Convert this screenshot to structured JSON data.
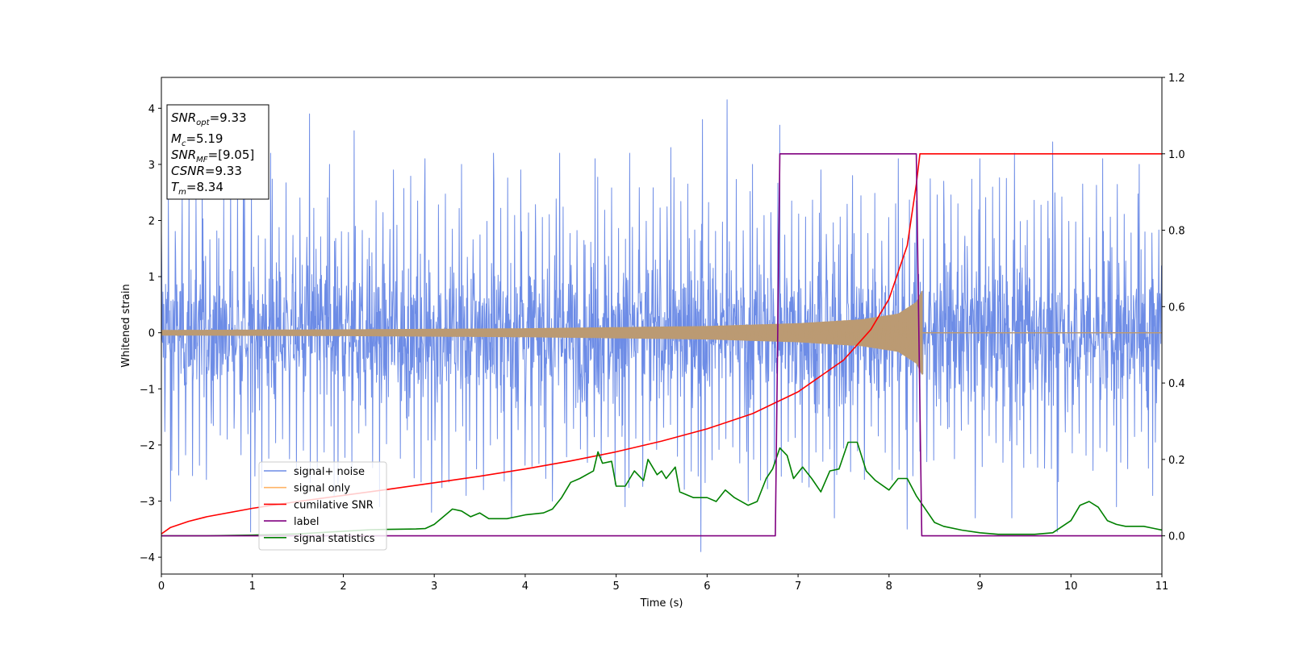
{
  "chart_data": {
    "type": "line",
    "xlabel": "Time (s)",
    "ylabel": "Whitened strain",
    "xlim": [
      0,
      11
    ],
    "ylim": [
      -4.3,
      4.55
    ],
    "y2lim": [
      -0.1,
      1.2
    ],
    "xticks": [
      "0",
      "1",
      "2",
      "3",
      "4",
      "5",
      "6",
      "7",
      "8",
      "9",
      "10",
      "11"
    ],
    "yticks": [
      "−4",
      "−3",
      "−2",
      "−1",
      "0",
      "1",
      "2",
      "3",
      "4"
    ],
    "y2ticks": [
      "0.0",
      "0.2",
      "0.4",
      "0.6",
      "0.8",
      "1.0",
      "1.2"
    ],
    "legend_position": "lower-left",
    "colors": {
      "signal_noise": "#6d8ce6",
      "signal_only": "#ffb366",
      "signal_only_overlap": "#bb9a73",
      "cumulative_snr": "#ff0000",
      "label": "#800080",
      "signal_statistics": "#008000"
    },
    "info_box": {
      "snr_opt": "9.33",
      "mc": "5.19",
      "snr_mf": "[9.05]",
      "csnr": "9.33",
      "tm": "8.34"
    },
    "series": [
      {
        "name": "signal+ noise",
        "axis": "left",
        "kind": "noise",
        "x_range": [
          0,
          11
        ],
        "typical_amplitude": [
          -1.6,
          1.6
        ],
        "peaks": [
          {
            "x": 0.1,
            "y": 2.9
          },
          {
            "x": 0.45,
            "y": 2.8
          },
          {
            "x": 0.9,
            "y": 2.7
          },
          {
            "x": 1.2,
            "y": 3.2
          },
          {
            "x": 1.63,
            "y": 3.9
          },
          {
            "x": 1.85,
            "y": 3.0
          },
          {
            "x": 2.12,
            "y": 3.6
          },
          {
            "x": 2.55,
            "y": 2.9
          },
          {
            "x": 2.9,
            "y": 3.1
          },
          {
            "x": 3.3,
            "y": 3.0
          },
          {
            "x": 3.65,
            "y": 3.2
          },
          {
            "x": 3.95,
            "y": 2.9
          },
          {
            "x": 4.38,
            "y": 3.2
          },
          {
            "x": 4.77,
            "y": 3.1
          },
          {
            "x": 5.15,
            "y": 3.2
          },
          {
            "x": 5.6,
            "y": 3.3
          },
          {
            "x": 5.95,
            "y": 3.8
          },
          {
            "x": 6.22,
            "y": 4.15
          },
          {
            "x": 6.5,
            "y": 3.0
          },
          {
            "x": 6.8,
            "y": 3.7
          },
          {
            "x": 7.25,
            "y": 2.9
          },
          {
            "x": 7.6,
            "y": 2.8
          },
          {
            "x": 8.1,
            "y": 3.1
          },
          {
            "x": 8.6,
            "y": 2.7
          },
          {
            "x": 9.0,
            "y": 3.1
          },
          {
            "x": 9.38,
            "y": 3.2
          },
          {
            "x": 9.8,
            "y": 3.4
          },
          {
            "x": 10.35,
            "y": 3.1
          },
          {
            "x": 10.75,
            "y": 3.0
          }
        ],
        "troughs": [
          {
            "x": 0.1,
            "y": -3.0
          },
          {
            "x": 0.98,
            "y": -3.55
          },
          {
            "x": 1.9,
            "y": -2.9
          },
          {
            "x": 2.4,
            "y": -3.1
          },
          {
            "x": 2.97,
            "y": -3.2
          },
          {
            "x": 3.35,
            "y": -2.9
          },
          {
            "x": 3.85,
            "y": -3.3
          },
          {
            "x": 4.3,
            "y": -3.0
          },
          {
            "x": 5.1,
            "y": -3.1
          },
          {
            "x": 5.93,
            "y": -3.9
          },
          {
            "x": 6.45,
            "y": -3.0
          },
          {
            "x": 7.4,
            "y": -3.3
          },
          {
            "x": 8.2,
            "y": -3.5
          },
          {
            "x": 8.95,
            "y": -3.3
          },
          {
            "x": 9.35,
            "y": -3.3
          },
          {
            "x": 9.85,
            "y": -3.55
          },
          {
            "x": 10.5,
            "y": -3.1
          },
          {
            "x": 10.9,
            "y": -2.9
          }
        ]
      },
      {
        "name": "signal only",
        "axis": "left",
        "kind": "chirp",
        "x_range": [
          0,
          8.37
        ],
        "envelope": [
          {
            "x": 0,
            "y": 0.05
          },
          {
            "x": 2,
            "y": 0.06
          },
          {
            "x": 4,
            "y": 0.08
          },
          {
            "x": 6,
            "y": 0.12
          },
          {
            "x": 7,
            "y": 0.17
          },
          {
            "x": 7.7,
            "y": 0.24
          },
          {
            "x": 8.1,
            "y": 0.34
          },
          {
            "x": 8.3,
            "y": 0.55
          },
          {
            "x": 8.36,
            "y": 0.75
          }
        ]
      },
      {
        "name": "cumilative SNR",
        "axis": "right",
        "kind": "line",
        "points": [
          {
            "x": 0,
            "y": 0.005
          },
          {
            "x": 0.1,
            "y": 0.022
          },
          {
            "x": 0.3,
            "y": 0.038
          },
          {
            "x": 0.5,
            "y": 0.05
          },
          {
            "x": 1,
            "y": 0.072
          },
          {
            "x": 1.5,
            "y": 0.09
          },
          {
            "x": 2,
            "y": 0.106
          },
          {
            "x": 2.5,
            "y": 0.122
          },
          {
            "x": 3,
            "y": 0.139
          },
          {
            "x": 3.5,
            "y": 0.156
          },
          {
            "x": 4,
            "y": 0.175
          },
          {
            "x": 4.5,
            "y": 0.196
          },
          {
            "x": 5,
            "y": 0.22
          },
          {
            "x": 5.5,
            "y": 0.248
          },
          {
            "x": 6,
            "y": 0.28
          },
          {
            "x": 6.5,
            "y": 0.32
          },
          {
            "x": 7,
            "y": 0.377
          },
          {
            "x": 7.5,
            "y": 0.46
          },
          {
            "x": 7.8,
            "y": 0.54
          },
          {
            "x": 8,
            "y": 0.62
          },
          {
            "x": 8.2,
            "y": 0.76
          },
          {
            "x": 8.3,
            "y": 0.92
          },
          {
            "x": 8.34,
            "y": 1.0
          },
          {
            "x": 11,
            "y": 1.0
          }
        ]
      },
      {
        "name": "label",
        "axis": "right",
        "kind": "line",
        "points": [
          {
            "x": 0,
            "y": 0
          },
          {
            "x": 6.75,
            "y": 0
          },
          {
            "x": 6.8,
            "y": 1
          },
          {
            "x": 8.3,
            "y": 1
          },
          {
            "x": 8.36,
            "y": 0
          },
          {
            "x": 11,
            "y": 0
          }
        ]
      },
      {
        "name": "signal statistics",
        "axis": "right",
        "kind": "line",
        "points": [
          {
            "x": 0,
            "y": 0.0
          },
          {
            "x": 0.5,
            "y": 0.0
          },
          {
            "x": 1,
            "y": 0.002
          },
          {
            "x": 1.5,
            "y": 0.005
          },
          {
            "x": 2,
            "y": 0.012
          },
          {
            "x": 2.3,
            "y": 0.016
          },
          {
            "x": 2.5,
            "y": 0.017
          },
          {
            "x": 2.8,
            "y": 0.018
          },
          {
            "x": 2.9,
            "y": 0.019
          },
          {
            "x": 3.0,
            "y": 0.03
          },
          {
            "x": 3.1,
            "y": 0.05
          },
          {
            "x": 3.2,
            "y": 0.07
          },
          {
            "x": 3.3,
            "y": 0.065
          },
          {
            "x": 3.4,
            "y": 0.05
          },
          {
            "x": 3.5,
            "y": 0.06
          },
          {
            "x": 3.6,
            "y": 0.045
          },
          {
            "x": 3.8,
            "y": 0.045
          },
          {
            "x": 4.0,
            "y": 0.055
          },
          {
            "x": 4.2,
            "y": 0.06
          },
          {
            "x": 4.3,
            "y": 0.07
          },
          {
            "x": 4.4,
            "y": 0.1
          },
          {
            "x": 4.5,
            "y": 0.14
          },
          {
            "x": 4.6,
            "y": 0.15
          },
          {
            "x": 4.75,
            "y": 0.17
          },
          {
            "x": 4.8,
            "y": 0.22
          },
          {
            "x": 4.85,
            "y": 0.19
          },
          {
            "x": 4.95,
            "y": 0.195
          },
          {
            "x": 5.0,
            "y": 0.13
          },
          {
            "x": 5.1,
            "y": 0.13
          },
          {
            "x": 5.2,
            "y": 0.17
          },
          {
            "x": 5.3,
            "y": 0.145
          },
          {
            "x": 5.35,
            "y": 0.2
          },
          {
            "x": 5.45,
            "y": 0.16
          },
          {
            "x": 5.5,
            "y": 0.17
          },
          {
            "x": 5.55,
            "y": 0.15
          },
          {
            "x": 5.65,
            "y": 0.18
          },
          {
            "x": 5.7,
            "y": 0.115
          },
          {
            "x": 5.85,
            "y": 0.1
          },
          {
            "x": 6.0,
            "y": 0.1
          },
          {
            "x": 6.1,
            "y": 0.09
          },
          {
            "x": 6.2,
            "y": 0.12
          },
          {
            "x": 6.3,
            "y": 0.1
          },
          {
            "x": 6.45,
            "y": 0.08
          },
          {
            "x": 6.55,
            "y": 0.09
          },
          {
            "x": 6.65,
            "y": 0.15
          },
          {
            "x": 6.72,
            "y": 0.175
          },
          {
            "x": 6.8,
            "y": 0.23
          },
          {
            "x": 6.88,
            "y": 0.21
          },
          {
            "x": 6.95,
            "y": 0.15
          },
          {
            "x": 7.05,
            "y": 0.18
          },
          {
            "x": 7.15,
            "y": 0.15
          },
          {
            "x": 7.25,
            "y": 0.115
          },
          {
            "x": 7.35,
            "y": 0.17
          },
          {
            "x": 7.45,
            "y": 0.175
          },
          {
            "x": 7.55,
            "y": 0.245
          },
          {
            "x": 7.65,
            "y": 0.245
          },
          {
            "x": 7.75,
            "y": 0.17
          },
          {
            "x": 7.85,
            "y": 0.145
          },
          {
            "x": 8.0,
            "y": 0.12
          },
          {
            "x": 8.1,
            "y": 0.15
          },
          {
            "x": 8.2,
            "y": 0.15
          },
          {
            "x": 8.3,
            "y": 0.105
          },
          {
            "x": 8.4,
            "y": 0.07
          },
          {
            "x": 8.5,
            "y": 0.035
          },
          {
            "x": 8.6,
            "y": 0.025
          },
          {
            "x": 8.8,
            "y": 0.015
          },
          {
            "x": 9.0,
            "y": 0.008
          },
          {
            "x": 9.2,
            "y": 0.004
          },
          {
            "x": 9.4,
            "y": 0.004
          },
          {
            "x": 9.6,
            "y": 0.004
          },
          {
            "x": 9.8,
            "y": 0.008
          },
          {
            "x": 10.0,
            "y": 0.04
          },
          {
            "x": 10.05,
            "y": 0.06
          },
          {
            "x": 10.1,
            "y": 0.08
          },
          {
            "x": 10.2,
            "y": 0.09
          },
          {
            "x": 10.3,
            "y": 0.075
          },
          {
            "x": 10.4,
            "y": 0.04
          },
          {
            "x": 10.5,
            "y": 0.03
          },
          {
            "x": 10.6,
            "y": 0.025
          },
          {
            "x": 10.8,
            "y": 0.025
          },
          {
            "x": 10.9,
            "y": 0.02
          },
          {
            "x": 11.0,
            "y": 0.015
          }
        ]
      }
    ]
  }
}
